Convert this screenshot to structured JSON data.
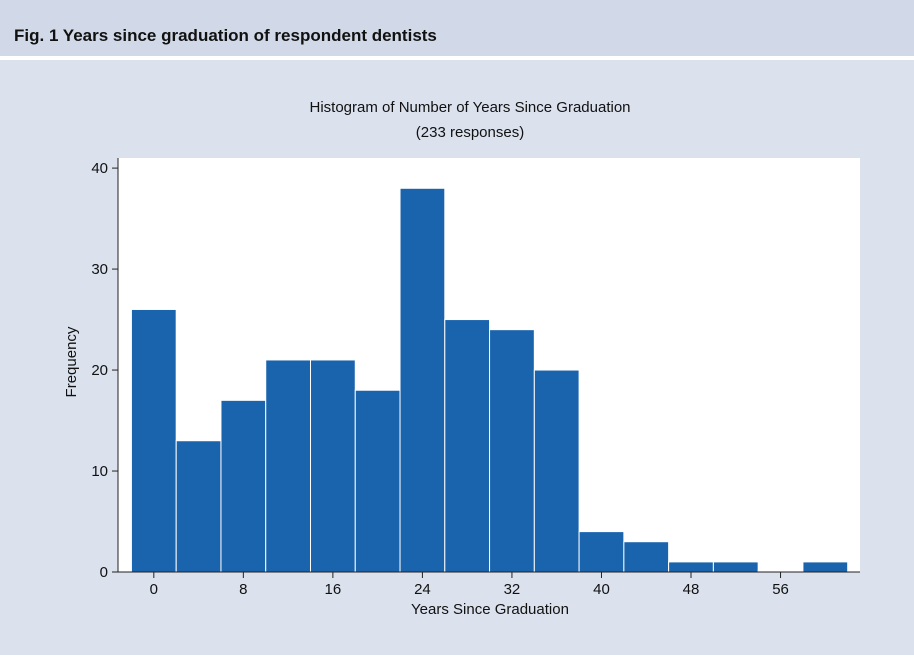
{
  "caption": "Fig. 1  Years since graduation of respondent dentists",
  "chart_data": {
    "type": "histogram",
    "title": "Histogram of Number of Years Since Graduation",
    "subtitle": "(233 responses)",
    "x_label": "Years Since Graduation",
    "y_label": "Frequency",
    "bins": [
      -2,
      2,
      6,
      10,
      14,
      18,
      22,
      26,
      30,
      34,
      38,
      42,
      46,
      50,
      54,
      58,
      62
    ],
    "values": [
      26,
      13,
      17,
      21,
      21,
      18,
      38,
      25,
      24,
      20,
      4,
      3,
      1,
      1,
      0,
      1
    ],
    "color": "#1a64ae",
    "xlim": [
      -3.2,
      63.1
    ],
    "ylim": [
      0,
      41
    ],
    "xticks": [
      0,
      8,
      16,
      24,
      32,
      40,
      48,
      56
    ],
    "yticks": [
      0,
      10,
      20,
      30,
      40
    ]
  }
}
